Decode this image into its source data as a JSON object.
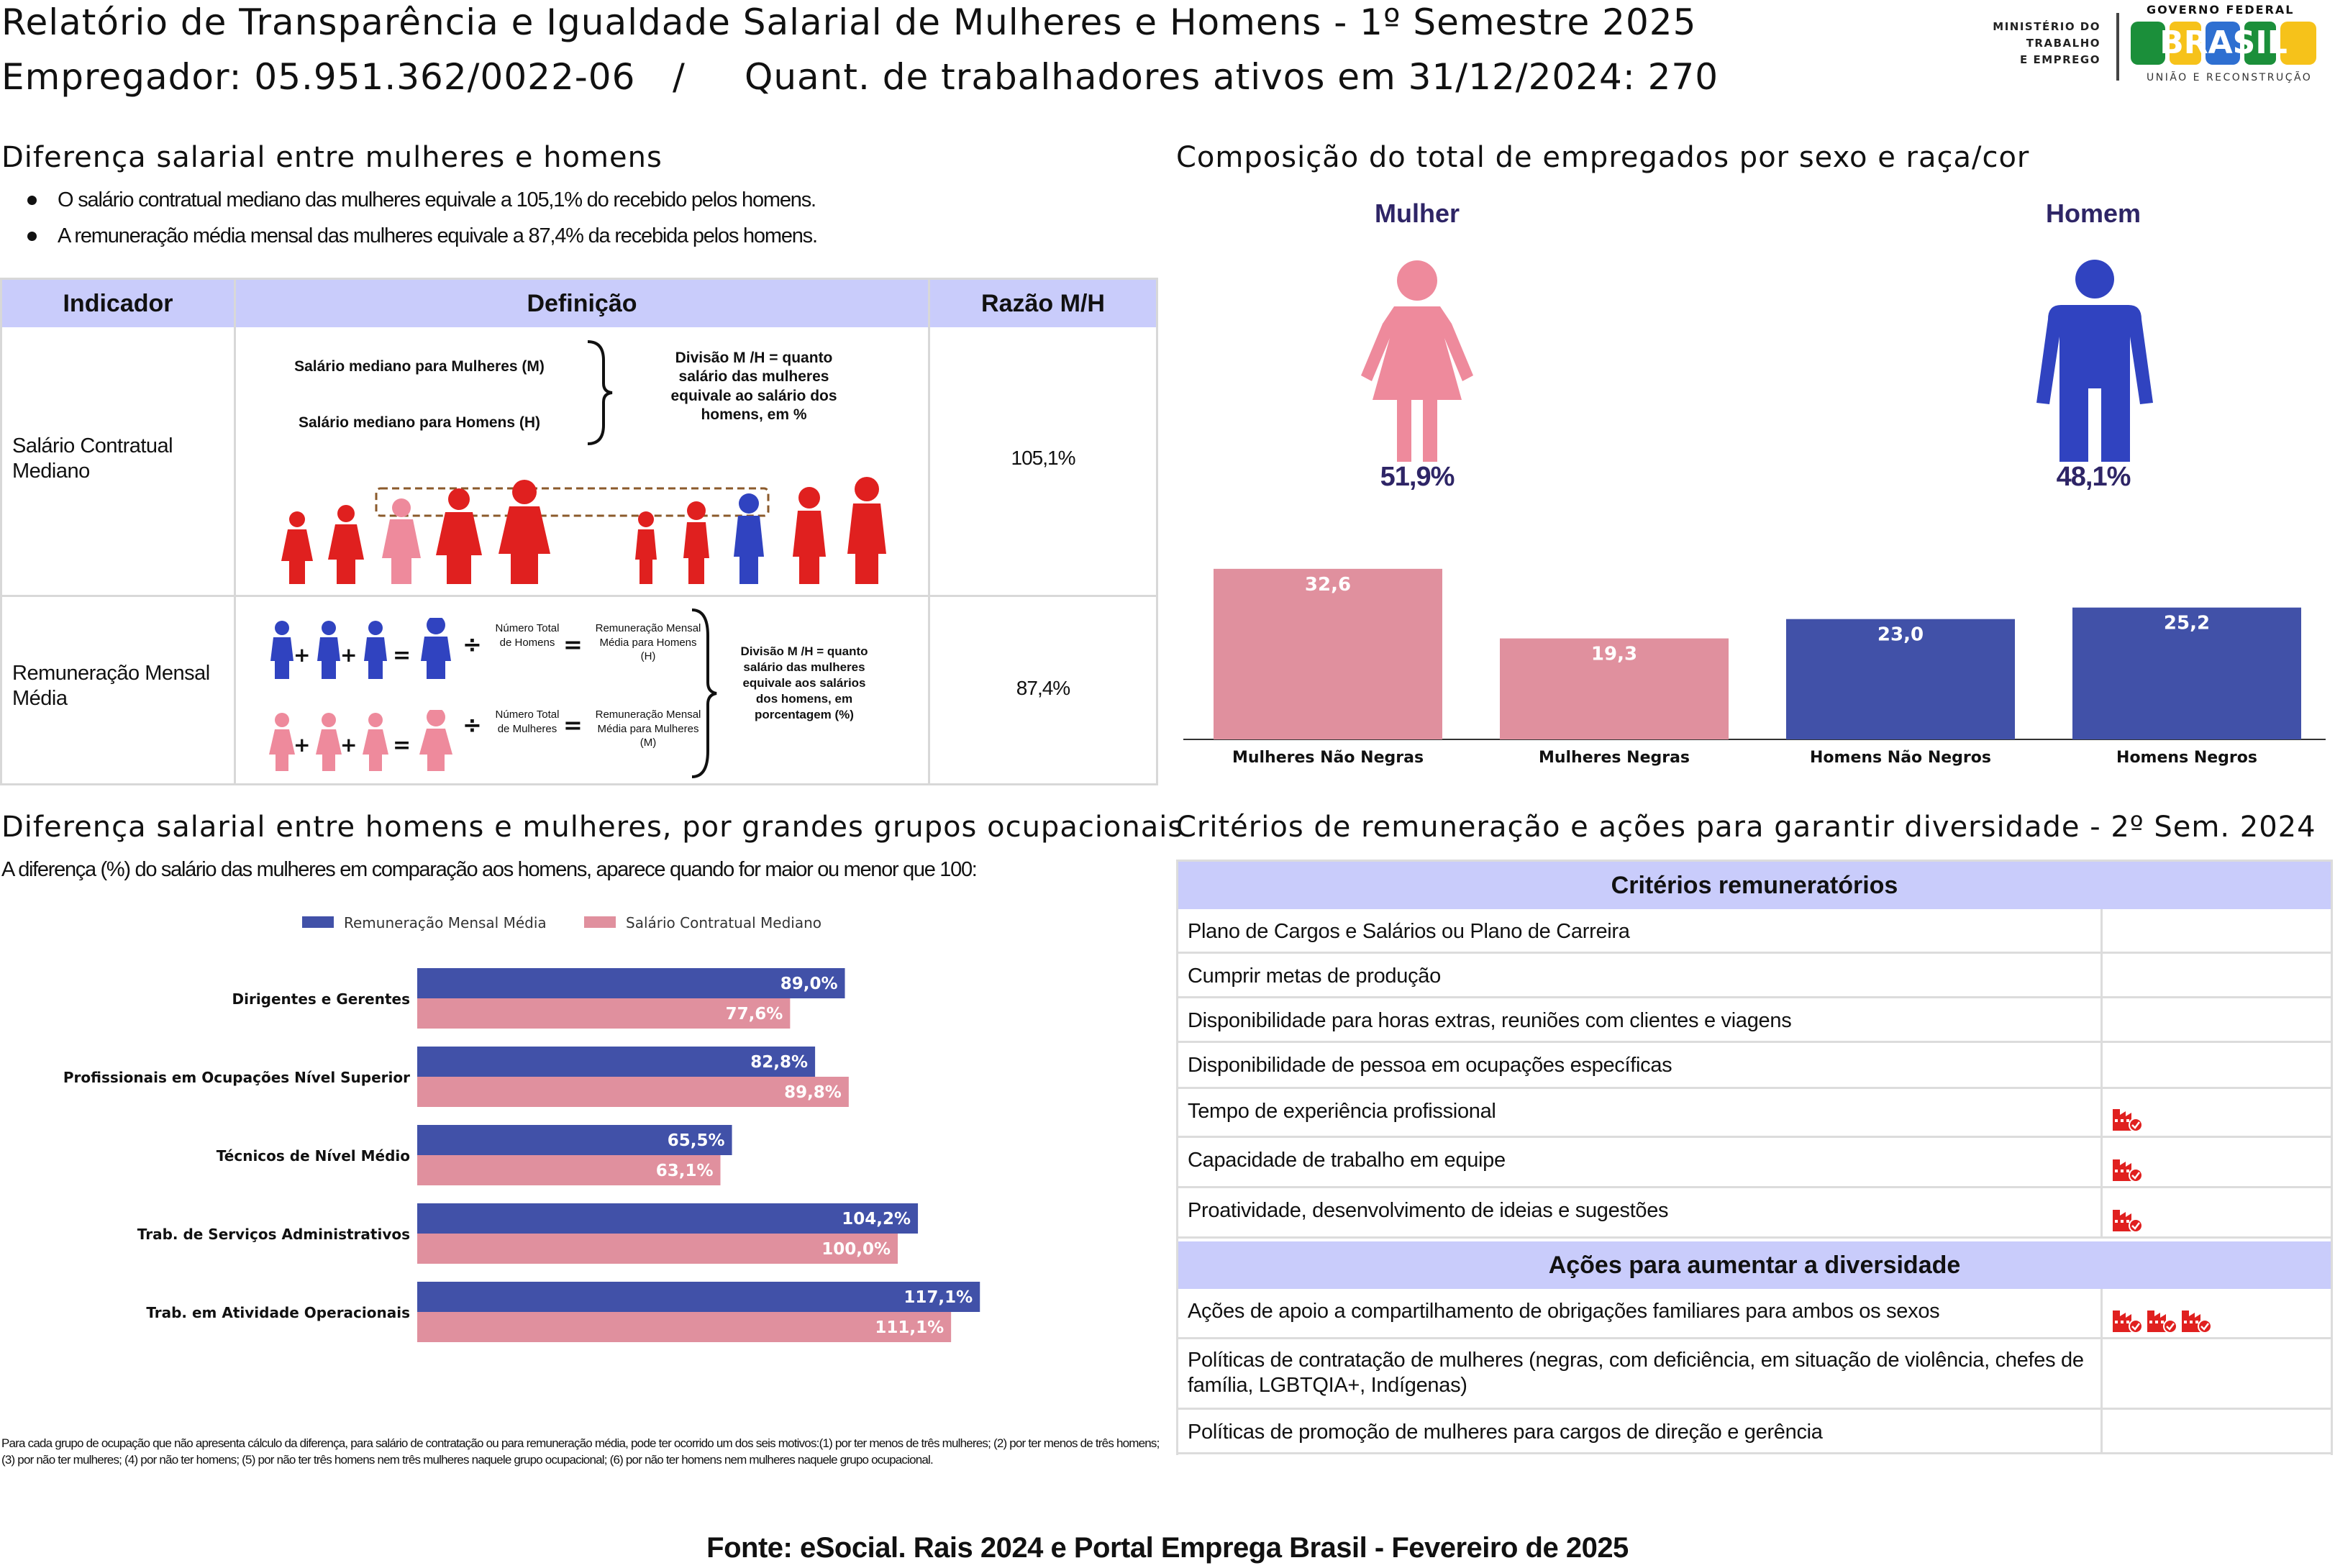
{
  "header": {
    "title": "Relatório de Transparência e Igualdade Salarial de Mulheres e Homens - 1º Semestre 2025",
    "employer": "Empregador: 05.951.362/0022-06",
    "separator": "/",
    "workers": "Quant. de trabalhadores ativos em 31/12/2024: 270",
    "logo_ministry": [
      "MINISTÉRIO DO",
      "TRABALHO",
      "E EMPREGO"
    ],
    "logo_gov": "GOVERNO FEDERAL",
    "logo_brasil": "BRASIL",
    "logo_tagline": "UNIÃO E RECONSTRUÇÃO"
  },
  "salary_diff": {
    "title": "Diferença salarial entre mulheres e homens",
    "bullets": [
      "O salário contratual mediano das mulheres equivale a 105,1% do recebido pelos homens.",
      "A remuneração média mensal das mulheres equivale a 87,4% da recebida pelos homens."
    ],
    "table": {
      "headers": [
        "Indicador",
        "Definição",
        "Razão M/H"
      ],
      "row1": {
        "indicator": "Salário Contratual Mediano",
        "median_women": "Salário mediano para Mulheres (M)",
        "median_men": "Salário mediano para Homens (H)",
        "division": "Divisão M /H = quanto salário das mulheres equivale ao salário dos homens, em %",
        "ratio": "105,1%"
      },
      "row2": {
        "indicator": "Remuneração Mensal Média",
        "total_men": "Número Total de Homens",
        "avg_men": "Remuneração Mensal Média para Homens (H)",
        "total_women": "Número Total de Mulheres",
        "avg_women": "Remuneração Mensal Média para Mulheres (M)",
        "division": "Divisão M /H = quanto salário das mulheres equivale aos salários dos homens, em porcentagem (%)",
        "ratio": "87,4%",
        "plus": "+",
        "equals": "=",
        "divide": "÷"
      }
    }
  },
  "composition": {
    "title": "Composição do total de empregados por sexo e raça/cor",
    "woman_label": "Mulher",
    "man_label": "Homem",
    "woman_pct": "51,9%",
    "man_pct": "48,1%",
    "colors": {
      "woman": "#ee8a9c",
      "man": "#3043c0",
      "label": "#2e2566"
    }
  },
  "chart_data": [
    {
      "type": "bar",
      "categories": [
        "Mulheres Não Negras",
        "Mulheres Negras",
        "Homens Não Negros",
        "Homens Negros"
      ],
      "values": [
        32.6,
        19.3,
        23.0,
        25.2
      ],
      "labels": [
        "32,6",
        "19,3",
        "23,0",
        "25,2"
      ],
      "colors": [
        "#e0909e",
        "#e0909e",
        "#4151a8",
        "#4151a8"
      ],
      "ylim": [
        0,
        35
      ]
    },
    {
      "type": "bar",
      "orientation": "horizontal",
      "categories": [
        "Dirigentes e Gerentes",
        "Profissionais em Ocupações Nível Superior",
        "Técnicos de Nível Médio",
        "Trab. de Serviços Administrativos",
        "Trab. em Atividade Operacionais"
      ],
      "series": [
        {
          "name": "Remuneração Mensal Média",
          "values": [
            89.0,
            82.8,
            65.5,
            104.2,
            117.1
          ],
          "labels": [
            "89,0%",
            "82,8%",
            "65,5%",
            "104,2%",
            "117,1%"
          ],
          "color": "#4151a8"
        },
        {
          "name": "Salário Contratual Mediano",
          "values": [
            77.6,
            89.8,
            63.1,
            100.0,
            111.1
          ],
          "labels": [
            "77,6%",
            "89,8%",
            "63,1%",
            "100,0%",
            "111,1%"
          ],
          "color": "#e0909e"
        }
      ],
      "xlim": [
        0,
        125
      ],
      "legend": "top"
    }
  ],
  "occupational": {
    "title": "Diferença salarial entre homens e mulheres, por grandes grupos ocupacionais",
    "subtitle": "A diferença (%) do salário das mulheres em comparação aos homens, aparece quando for maior ou menor que 100:",
    "footnote": "Para cada grupo de ocupação que não apresenta cálculo da diferença, para salário de contratação ou para remuneração média, pode ter ocorrido um dos seis motivos:(1) por ter menos de três mulheres; (2) por ter menos de três homens; (3) por não ter mulheres; (4) por não ter homens; (5) por não ter três homens nem três mulheres naquele grupo ocupacional; (6) por não ter homens nem mulheres naquele grupo ocupacional."
  },
  "criteria": {
    "title": "Critérios de remuneração e ações para garantir diversidade - 2º Sem. 2024",
    "criteria_header": "Critérios remuneratórios",
    "actions_header": "Ações para aumentar a diversidade",
    "criteria_rows": [
      {
        "label": "Plano de Cargos e Salários ou Plano de Carreira",
        "icons": 0
      },
      {
        "label": "Cumprir metas de produção",
        "icons": 0
      },
      {
        "label": "Disponibilidade para horas extras, reuniões com clientes e viagens",
        "icons": 0
      },
      {
        "label": "Disponibilidade de pessoa em ocupações específicas",
        "icons": 0
      },
      {
        "label": "Tempo de experiência profissional",
        "icons": 1
      },
      {
        "label": "Capacidade de trabalho em equipe",
        "icons": 1
      },
      {
        "label": "Proatividade, desenvolvimento de ideias e sugestões",
        "icons": 1
      }
    ],
    "action_rows": [
      {
        "label": "Ações de apoio a compartilhamento de obrigações familiares para ambos os sexos",
        "icons": 3
      },
      {
        "label": "Políticas de contratação de mulheres (negras, com deficiência, em situação de violência, chefes de família, LGBTQIA+, Indígenas)",
        "icons": 0
      },
      {
        "label": "Políticas de promoção de mulheres para cargos de direção e gerência",
        "icons": 0
      }
    ]
  },
  "footer": "Fonte: eSocial. Rais 2024 e Portal Emprega Brasil - Fevereiro de 2025"
}
